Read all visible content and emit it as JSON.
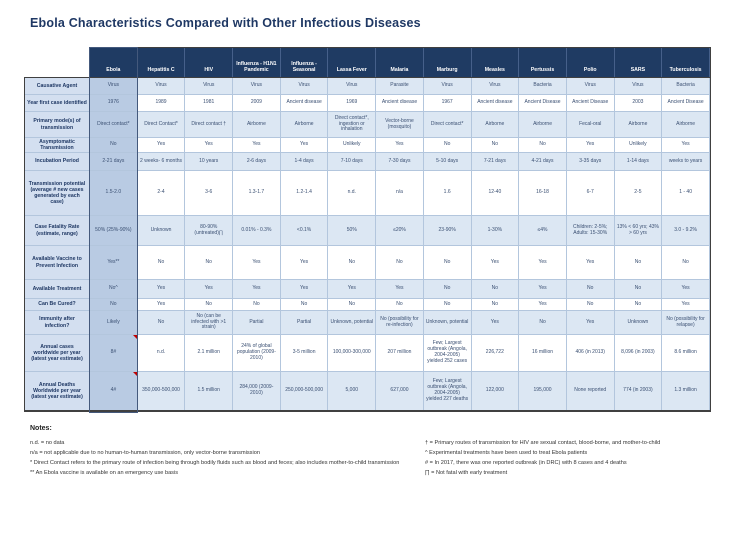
{
  "title": "Ebola Characteristics Compared with Other Infectious Diseases",
  "table": {
    "columns": [
      "Ebola",
      "Hepatitis C",
      "HIV",
      "Influenza - H1N1 Pandemic",
      "Influenza - Seasonal",
      "Lassa Fever",
      "Malaria",
      "Marburg",
      "Measles",
      "Pertussis",
      "Polio",
      "SARS",
      "Tuberculosis"
    ],
    "rows": [
      {
        "label": "Causative Agent",
        "values": [
          "Virus",
          "Virus",
          "Virus",
          "Virus",
          "Virus",
          "Virus",
          "Parasite",
          "Virus",
          "Virus",
          "Bacteria",
          "Virus",
          "Virus",
          "Bacteria"
        ]
      },
      {
        "label": "Year first case identified",
        "values": [
          "1976",
          "1989",
          "1981",
          "2009",
          "Ancient disease",
          "1969",
          "Ancient disease",
          "1967",
          "Ancient disease",
          "Ancient Disease",
          "Ancient Disease",
          "2003",
          "Ancient Disease"
        ]
      },
      {
        "label": "Primary mode(s) of transmission",
        "values": [
          "Direct contact*",
          "Direct Contact*",
          "Direct contact †",
          "Airborne",
          "Airborne",
          "Direct contact*, ingestion or inhalation",
          "Vector-borne (mosquito)",
          "Direct contact*",
          "Airborne",
          "Airborne",
          "Fecal-oral",
          "Airborne",
          "Airborne"
        ]
      },
      {
        "label": "Asymptomatic Transmission",
        "values": [
          "No",
          "Yes",
          "Yes",
          "Yes",
          "Yes",
          "Unlikely",
          "Yes",
          "No",
          "No",
          "No",
          "Yes",
          "Unlikely",
          "Yes"
        ]
      },
      {
        "label": "Incubation Period",
        "values": [
          "2-21 days",
          "2 weeks- 6 months",
          "10 years",
          "2-6 days",
          "1-4 days",
          "7-10 days",
          "7-30 days",
          "5-10 days",
          "7-21 days",
          "4-21 days",
          "3-35 days",
          "1-14 days",
          "weeks to years"
        ]
      },
      {
        "label": "Transmission potential (average # new cases generated by each case)",
        "values": [
          "1.5-2.0",
          "2-4",
          "3-6",
          "1.3-1.7",
          "1.2-1.4",
          "n.d.",
          "n/a",
          "1.6",
          "12-40",
          "16-18",
          "6-7",
          "2-5",
          "1 - 40"
        ]
      },
      {
        "label": "Case Fatality Rate (estimate, range)",
        "values": [
          "50% (25%-90%)",
          "Unknown",
          "80-90% (untreated)∏",
          "0.01% - 0.3%",
          "<0.1%",
          "50%",
          "≤20%",
          "23-90%",
          "1-30%",
          "≤4%",
          "Children: 2-5%; Adults: 15-30%",
          "13% < 60 yrs; 43% > 60 yrs",
          "3.0 - 9.2%"
        ]
      },
      {
        "label": "Available Vaccine to Prevent Infection",
        "values": [
          "Yes**",
          "No",
          "No",
          "Yes",
          "Yes",
          "No",
          "No",
          "No",
          "Yes",
          "Yes",
          "Yes",
          "No",
          "No"
        ]
      },
      {
        "label": "Available Treatment",
        "values": [
          "No^",
          "Yes",
          "Yes",
          "Yes",
          "Yes",
          "Yes",
          "Yes",
          "No",
          "No",
          "Yes",
          "No",
          "No",
          "Yes"
        ]
      },
      {
        "label": "Can Be Cured?",
        "values": [
          "No",
          "Yes",
          "No",
          "No",
          "No",
          "No",
          "No",
          "No",
          "No",
          "Yes",
          "No",
          "No",
          "Yes"
        ]
      },
      {
        "label": "Immunity after infection?",
        "values": [
          "Likely",
          "No",
          "No (can be infected with >1 strain)",
          "Partial",
          "Partial",
          "Unknown, potential",
          "No (possibility for re-infection)",
          "Unknown, potential",
          "Yes",
          "No",
          "Yes",
          "Unknown",
          "No (possibility for relapse)"
        ]
      },
      {
        "label": "Annual cases worldwide per year (latest year estimate)",
        "values": [
          "8#",
          "n.d.",
          "2.1 million",
          "24% of global population (2009-2010)",
          "3-5 million",
          "100,000-300,000",
          "207 million",
          "Few; Largest outbreak (Angola, 2004-2005) yielded 252 cases",
          "226,722",
          "16 million",
          "406 (in 2013)",
          "8,096 (in 2003)",
          "8.6 million"
        ]
      },
      {
        "label": "Annual Deaths Worldwide per year (latest year estimate)",
        "values": [
          "4#",
          "350,000-500,000",
          "1.5 million",
          "284,000 (2009-2010)",
          "250,000-500,000",
          "5,000",
          "627,000",
          "Few; Largest outbreak (Angola, 2004-2005) yielded 227 deaths",
          "122,000",
          "195,000",
          "None reported",
          "774 (in 2003)",
          "1.3 million"
        ]
      }
    ],
    "comment_markers": [
      {
        "row": 11,
        "col": 0
      },
      {
        "row": 12,
        "col": 0
      }
    ]
  },
  "notes": {
    "heading": "Notes:",
    "left": [
      "n.d. = no data",
      "n/a = not applicable due to no human-to-human transmission, only vector-borne transmission",
      "* Direct Contact refers to the primary route of infection being through bodily fluids such as blood and feces; also includes mother-to-child transmission",
      "** An Ebola vaccine is available on an emergency use basis"
    ],
    "right": [
      "† = Primary routes of transmission for HIV are sexual contact, blood-borne, and mother-to-child",
      "^ Experimental treatments have been used to treat Ebola patients",
      "# = In 2017, there was one reported outbreak (in DRC) with 8 cases and 4 deaths",
      "∏ = Not fatal with early treatment"
    ]
  },
  "colors": {
    "header_bg": "#1f3b63",
    "ebola_column_bg": "#b9cbe3",
    "banded_row_bg": "#dce7f3",
    "label_column_bg": "#d3dff0",
    "title_text": "#1f3864",
    "comment_marker": "#c00000"
  }
}
